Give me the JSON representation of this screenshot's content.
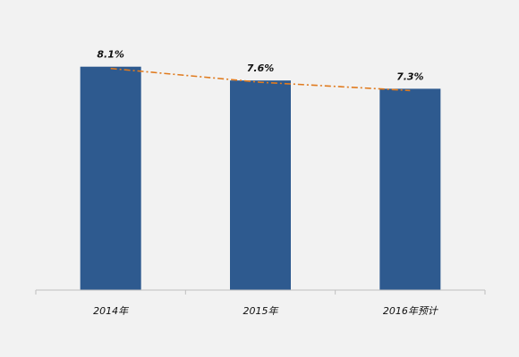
{
  "chart_data": {
    "type": "bar",
    "categories": [
      "2014年",
      "2015年",
      "2016年预计"
    ],
    "values": [
      8.1,
      7.6,
      7.3
    ],
    "data_labels": [
      "8.1%",
      "7.6%",
      "7.3%"
    ],
    "title": "",
    "xlabel": "",
    "ylabel": "",
    "ylim": [
      0,
      8.9
    ],
    "grid": false,
    "legend": "none",
    "trend_line": true,
    "colors": {
      "bar": "#2e5a8f",
      "trend": "#e07b1f",
      "axis": "#bfbfbf",
      "background": "#f2f2f2"
    }
  }
}
